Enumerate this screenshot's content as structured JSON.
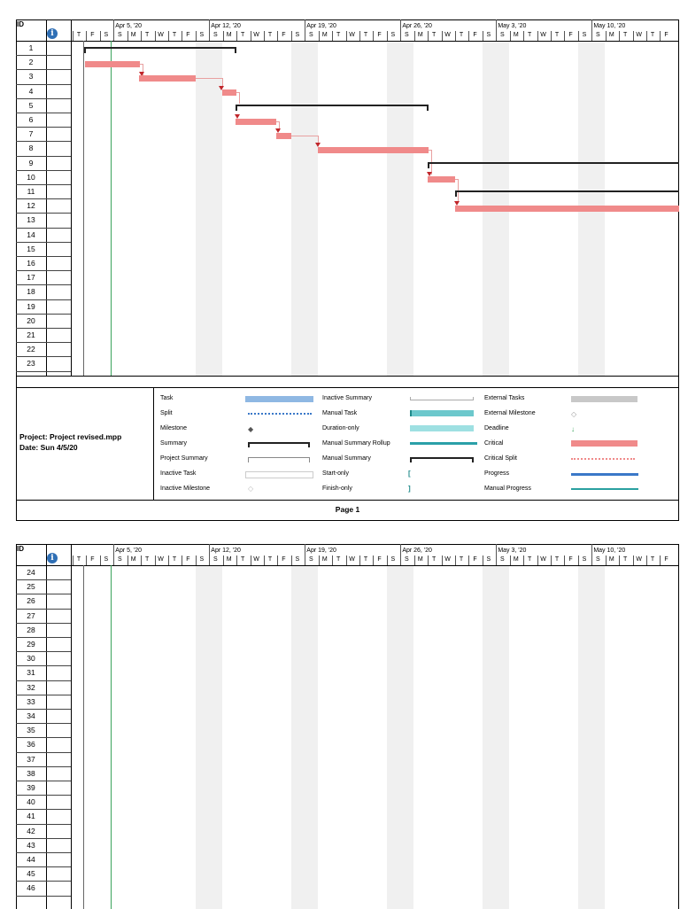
{
  "header": {
    "id_label": "ID"
  },
  "timescale": {
    "weeks": [
      "Apr 5, '20",
      "Apr 12, '20",
      "Apr 19, '20",
      "Apr 26, '20",
      "May 3, '20",
      "May 10, '20"
    ],
    "days": [
      "T",
      "F",
      "S",
      "S",
      "M",
      "T",
      "W",
      "T",
      "F",
      "S",
      "S",
      "M",
      "T",
      "W",
      "T",
      "F",
      "S",
      "S",
      "M",
      "T",
      "W",
      "T",
      "F",
      "S",
      "S",
      "M",
      "T",
      "W",
      "T",
      "F",
      "S",
      "S",
      "M",
      "T",
      "W",
      "T",
      "F",
      "S",
      "S",
      "M",
      "T",
      "W",
      "T",
      "F"
    ]
  },
  "page1": {
    "row_ids": [
      "1",
      "2",
      "3",
      "4",
      "5",
      "6",
      "7",
      "8",
      "9",
      "10",
      "11",
      "12",
      "13",
      "14",
      "15",
      "16",
      "17",
      "18",
      "19",
      "20",
      "21",
      "22",
      "23"
    ],
    "project_line": "Project: Project revised.mpp",
    "date_line": "Date: Sun 4/5/20",
    "page_label": "Page 1"
  },
  "page2": {
    "row_ids": [
      "24",
      "25",
      "26",
      "27",
      "28",
      "29",
      "30",
      "31",
      "32",
      "33",
      "34",
      "35",
      "36",
      "37",
      "38",
      "39",
      "40",
      "41",
      "42",
      "43",
      "44",
      "45",
      "46"
    ]
  },
  "legend": {
    "col1": [
      "Task",
      "Split",
      "Milestone",
      "Summary",
      "Project Summary",
      "Inactive Task",
      "Inactive Milestone"
    ],
    "col2": [
      "Inactive Summary",
      "Manual Task",
      "Duration-only",
      "Manual Summary Rollup",
      "Manual Summary",
      "Start-only",
      "Finish-only"
    ],
    "col3": [
      "External Tasks",
      "External Milestone",
      "Deadline",
      "Critical",
      "Critical Split",
      "Progress",
      "Manual Progress"
    ]
  },
  "colors": {
    "critical": "#f08a8a",
    "task": "#8fb8e3",
    "manual": "#6cc8cc",
    "progress": "#3a78c8",
    "manual_progress": "#2aa0a0"
  }
}
